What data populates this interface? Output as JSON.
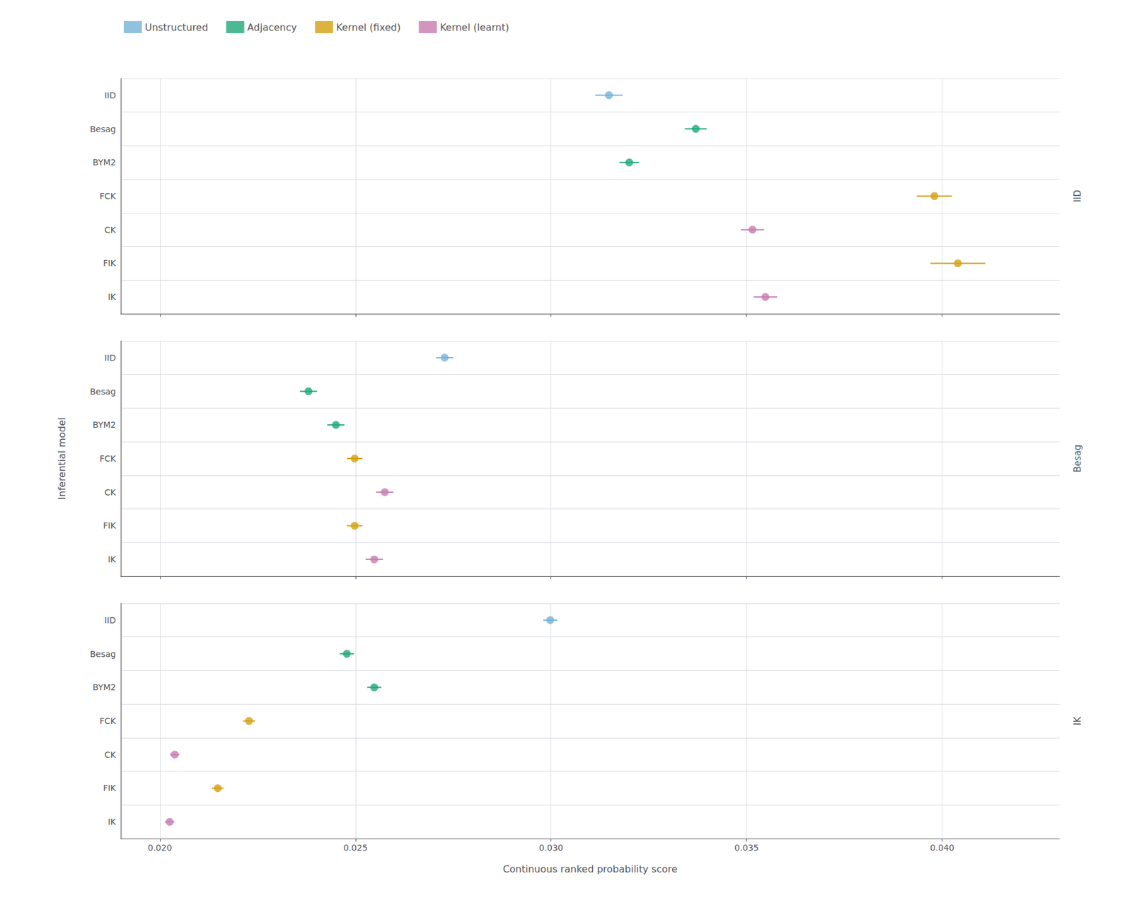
{
  "chart_data": {
    "type": "scatter",
    "xlabel": "Continuous ranked probability score",
    "ylabel": "Inferential model",
    "categories": [
      "IID",
      "Besag",
      "BYM2",
      "FCK",
      "CK",
      "FIK",
      "IK"
    ],
    "colors": [
      "#74B3D8",
      "#1FA87A",
      "#1FA87A",
      "#D4A010",
      "#C87AAF",
      "#D4A010",
      "#C87AAF"
    ],
    "panels": [
      {
        "title": "IID",
        "values": [
          0.03148,
          0.0337,
          0.032,
          0.0398,
          0.03515,
          0.0404,
          0.03548
        ],
        "errors": [
          0.00035,
          0.00028,
          0.00025,
          0.00045,
          0.0003,
          0.0007,
          0.0003
        ]
      },
      {
        "title": "Besag",
        "values": [
          0.02728,
          0.0238,
          0.0245,
          0.02498,
          0.02575,
          0.02498,
          0.02548
        ],
        "errors": [
          0.00022,
          0.00022,
          0.00022,
          0.0002,
          0.00022,
          0.0002,
          0.00022
        ]
      },
      {
        "title": "IK",
        "values": [
          0.02998,
          0.02478,
          0.02548,
          0.02228,
          0.02038,
          0.02148,
          0.02025
        ],
        "errors": [
          0.00018,
          0.00018,
          0.00018,
          0.00015,
          0.00012,
          0.00015,
          0.00012
        ]
      }
    ],
    "series": [
      {
        "name": "Unstructured",
        "color": "#74B3D8"
      },
      {
        "name": "Adjacency",
        "color": "#1FA87A"
      },
      {
        "name": "Kernel (fixed)",
        "color": "#D4A010"
      },
      {
        "name": "Kernel (learnt)",
        "color": "#C87AAF"
      }
    ],
    "xlim": [
      0.019,
      0.043
    ],
    "xticks": [
      {
        "value": 0.02,
        "label": "0.020"
      },
      0.025,
      {
        "value": 0.03,
        "label": "0.030"
      },
      0.035,
      {
        "value": 0.04,
        "label": "0.040"
      }
    ],
    "grid": true,
    "legend": "upper left"
  }
}
